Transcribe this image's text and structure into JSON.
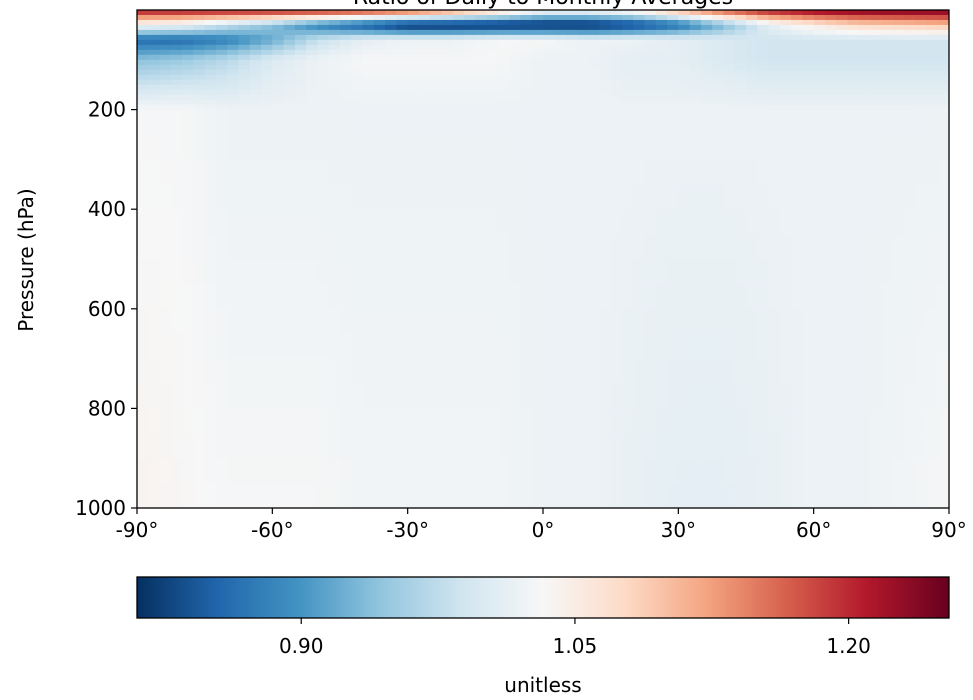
{
  "chart_data": {
    "type": "heatmap",
    "title": "Ratio of Daily to Monthly Averages",
    "xlabel": "",
    "ylabel": "Pressure (hPa)",
    "x_ticks": [
      "-90°",
      "-60°",
      "-30°",
      "0°",
      "30°",
      "60°",
      "90°"
    ],
    "x_tick_values": [
      -90,
      -60,
      -30,
      0,
      30,
      60,
      90
    ],
    "xlim": [
      -90,
      90
    ],
    "y_ticks": [
      "200",
      "400",
      "600",
      "800",
      "1000"
    ],
    "y_tick_values": [
      200,
      400,
      600,
      800,
      1000
    ],
    "ylim": [
      1000,
      0
    ],
    "y_inverted": true,
    "grid": false,
    "colormap": "RdBu_r",
    "colorbar": {
      "orientation": "horizontal",
      "label": "unitless",
      "ticks": [
        "0.90",
        "1.05",
        "1.20"
      ],
      "tick_values": [
        0.9,
        1.05,
        1.2
      ],
      "range": [
        0.81,
        1.255
      ]
    },
    "summary_rows": [
      {
        "pressure": 0,
        "values": [
          1.22,
          1.22,
          1.22,
          1.22,
          1.22,
          1.21,
          1.19,
          1.15,
          1.1,
          1.04,
          1.04,
          1.06,
          1.12,
          1.18,
          1.22,
          1.24,
          1.25,
          1.25,
          1.25
        ]
      },
      {
        "pressure": 30,
        "values": [
          1.03,
          1.02,
          0.98,
          0.94,
          0.88,
          0.84,
          0.8,
          0.8,
          0.8,
          0.8,
          0.8,
          0.82,
          0.86,
          0.93,
          1.01,
          1.05,
          1.08,
          1.09,
          1.1
        ]
      },
      {
        "pressure": 60,
        "values": [
          0.86,
          0.86,
          0.88,
          0.92,
          0.98,
          1.01,
          1.02,
          1.02,
          1.03,
          1.03,
          1.02,
          1.02,
          1.01,
          1.0,
          0.99,
          0.99,
          0.99,
          0.99,
          0.99
        ]
      },
      {
        "pressure": 100,
        "values": [
          0.94,
          0.95,
          0.97,
          1.0,
          1.02,
          1.03,
          1.03,
          1.03,
          1.03,
          1.02,
          1.02,
          1.01,
          1.01,
          1.0,
          0.99,
          0.99,
          0.99,
          0.99,
          0.99
        ]
      },
      {
        "pressure": 200,
        "values": [
          1.03,
          1.03,
          1.02,
          1.02,
          1.02,
          1.02,
          1.02,
          1.02,
          1.02,
          1.02,
          1.02,
          1.02,
          1.02,
          1.02,
          1.02,
          1.02,
          1.02,
          1.02,
          1.02
        ]
      },
      {
        "pressure": 1000,
        "values": [
          1.04,
          1.035,
          1.03,
          1.03,
          1.03,
          1.025,
          1.025,
          1.025,
          1.025,
          1.02,
          1.02,
          1.015,
          1.01,
          1.01,
          1.015,
          1.02,
          1.02,
          1.025,
          1.03
        ]
      }
    ],
    "summary_lats": [
      -90,
      -80,
      -70,
      -60,
      -50,
      -40,
      -30,
      -20,
      -10,
      0,
      10,
      20,
      30,
      40,
      50,
      60,
      70,
      80,
      90
    ]
  }
}
